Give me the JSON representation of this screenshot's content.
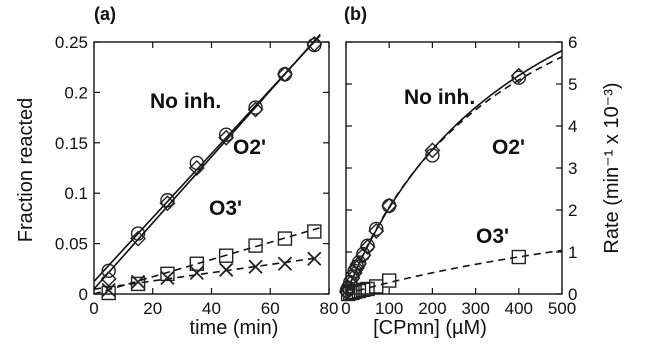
{
  "chart_data": [
    {
      "type": "scatter",
      "panel_label": "(a)",
      "xlabel": "time (min)",
      "ylabel": "Fraction reacted",
      "xlim": [
        0,
        80
      ],
      "ylim": [
        0,
        0.25
      ],
      "xticks": [
        "0",
        "20",
        "40",
        "60",
        "80"
      ],
      "yticks": [
        "0",
        "0.05",
        "0.1",
        "0.15",
        "0.2",
        "0.25"
      ],
      "grid": false,
      "annotations": [
        "No inh.",
        "O2'",
        "O3'"
      ],
      "series": [
        {
          "marker": "diamond",
          "x": [
            5,
            15,
            25,
            35,
            45,
            55,
            65,
            75
          ],
          "y": [
            0.015,
            0.055,
            0.09,
            0.125,
            0.155,
            0.183,
            0.218,
            0.248
          ],
          "fit": "solid"
        },
        {
          "marker": "circle",
          "x": [
            5,
            15,
            25,
            35,
            45,
            55,
            65,
            75
          ],
          "y": [
            0.023,
            0.06,
            0.093,
            0.13,
            0.158,
            0.185,
            0.218,
            0.247
          ],
          "fit": "solid"
        },
        {
          "marker": "square",
          "x": [
            5,
            15,
            25,
            35,
            45,
            55,
            65,
            75
          ],
          "y": [
            0.001,
            0.01,
            0.02,
            0.03,
            0.038,
            0.048,
            0.055,
            0.062
          ],
          "fit": "dashed"
        },
        {
          "marker": "x",
          "x": [
            5,
            15,
            25,
            35,
            45,
            55,
            65,
            75
          ],
          "y": [
            0.004,
            0.012,
            0.016,
            0.021,
            0.024,
            0.027,
            0.03,
            0.035
          ],
          "fit": "dashed"
        }
      ]
    },
    {
      "type": "scatter",
      "panel_label": "(b)",
      "xlabel": "[CPmn] (µM)",
      "ylabel": "Rate (min⁻¹ x 10⁻³)",
      "xlim": [
        0,
        500
      ],
      "ylim": [
        0,
        6
      ],
      "xticks": [
        "0",
        "100",
        "200",
        "300",
        "400",
        "500"
      ],
      "yticks": [
        "0",
        "1",
        "2",
        "3",
        "4",
        "5",
        "6"
      ],
      "grid": false,
      "annotations": [
        "No inh.",
        "O2'",
        "O3'"
      ],
      "series": [
        {
          "marker": "diamond",
          "x": [
            2,
            5,
            10,
            15,
            20,
            25,
            30,
            40,
            50,
            70,
            100,
            200,
            400
          ],
          "y": [
            0.05,
            0.12,
            0.25,
            0.38,
            0.5,
            0.62,
            0.72,
            0.92,
            1.12,
            1.5,
            2.1,
            3.42,
            5.2
          ],
          "fit": "solid"
        },
        {
          "marker": "circle",
          "x": [
            2,
            5,
            10,
            15,
            20,
            25,
            30,
            40,
            50,
            70,
            100,
            200,
            400
          ],
          "y": [
            0.08,
            0.15,
            0.28,
            0.42,
            0.55,
            0.65,
            0.75,
            0.95,
            1.15,
            1.55,
            2.1,
            3.3,
            5.15
          ],
          "fit": "dashed"
        },
        {
          "marker": "square",
          "x": [
            5,
            10,
            15,
            20,
            30,
            40,
            50,
            70,
            100,
            400
          ],
          "y": [
            0.0,
            0.02,
            0.03,
            0.05,
            0.07,
            0.1,
            0.12,
            0.18,
            0.32,
            0.88
          ],
          "fit": "dashed"
        }
      ]
    }
  ]
}
